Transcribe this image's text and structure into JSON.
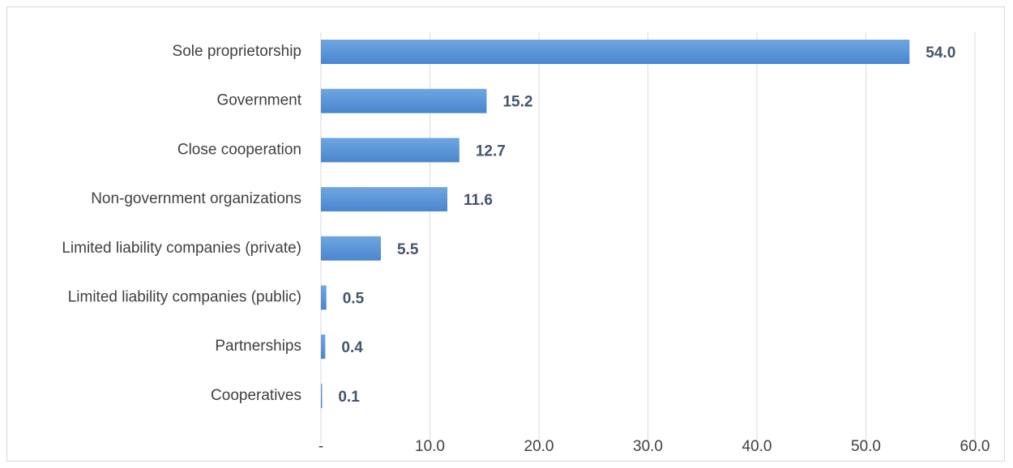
{
  "chart_data": {
    "type": "bar",
    "orientation": "horizontal",
    "categories": [
      "Sole proprietorship",
      "Government",
      "Close cooperation",
      "Non-government organizations",
      "Limited liability companies (private)",
      "Limited liability companies (public)",
      "Partnerships",
      "Cooperatives"
    ],
    "values": [
      54.0,
      15.2,
      12.7,
      11.6,
      5.5,
      0.5,
      0.4,
      0.1
    ],
    "value_labels": [
      "54.0",
      "15.2",
      "12.7",
      "11.6",
      "5.5",
      "0.5",
      "0.4",
      "0.1"
    ],
    "xlim": [
      0,
      60
    ],
    "x_ticks": [
      0,
      10,
      20,
      30,
      40,
      50,
      60
    ],
    "x_tick_labels": [
      "-",
      "10.0",
      "20.0",
      "30.0",
      "40.0",
      "50.0",
      "60.0"
    ],
    "title": "",
    "xlabel": "",
    "ylabel": "",
    "grid": "vertical",
    "legend": "none",
    "colors": {
      "bar_top": "#6fa6e0",
      "bar_bottom": "#4a86cf",
      "gridline": "#d9d9d9",
      "data_label": "#44546a",
      "axis_text": "#404040"
    }
  }
}
